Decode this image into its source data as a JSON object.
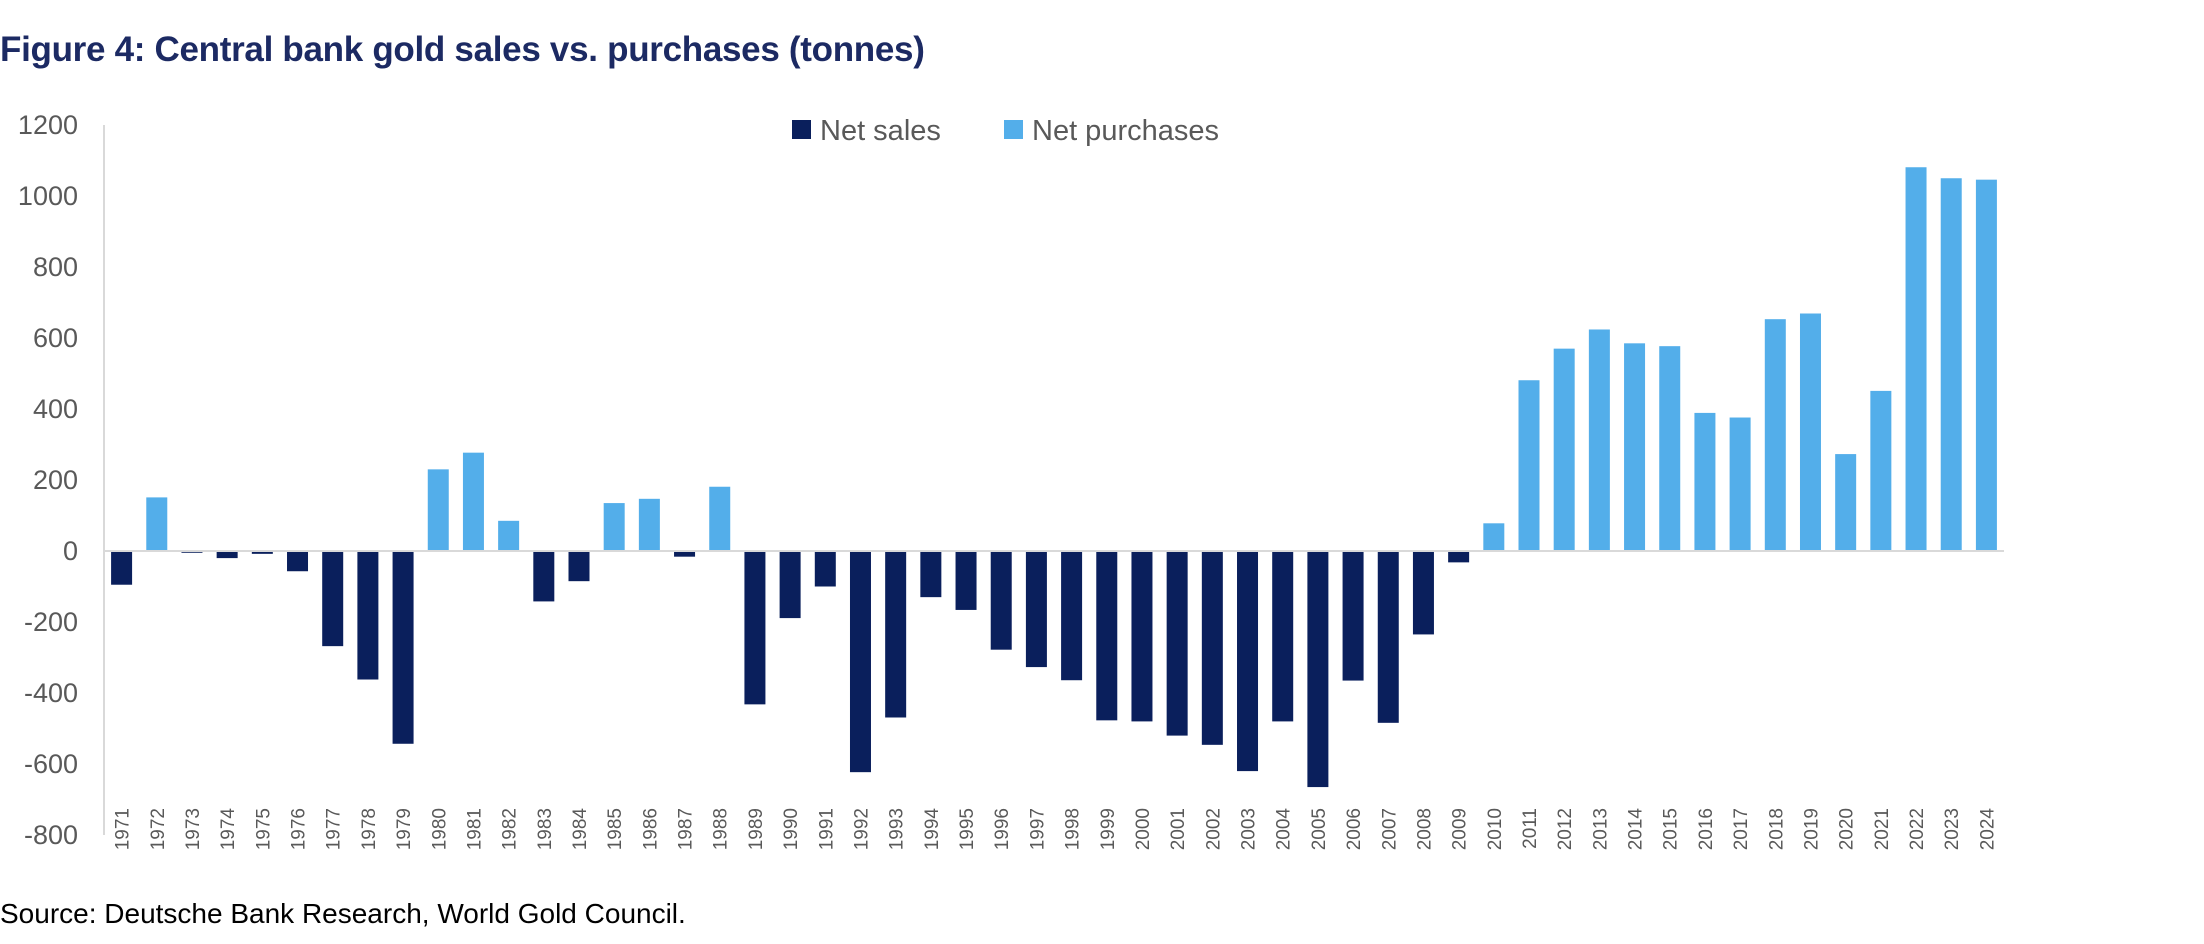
{
  "chart_data": {
    "type": "bar",
    "title": "Figure 4: Central bank gold sales vs. purchases (tonnes)",
    "source": "Source: Deutsche Bank Research, World Gold Council.",
    "xlabel": "",
    "ylabel": "",
    "ylim": [
      -800,
      1200
    ],
    "yticks": [
      1200,
      1000,
      800,
      600,
      400,
      200,
      0,
      -200,
      -400,
      -600,
      -800
    ],
    "grid": false,
    "legend_position": "top-center",
    "categories": [
      "1971",
      "1972",
      "1973",
      "1974",
      "1975",
      "1976",
      "1977",
      "1978",
      "1979",
      "1980",
      "1981",
      "1982",
      "1983",
      "1984",
      "1985",
      "1986",
      "1987",
      "1988",
      "1989",
      "1990",
      "1991",
      "1992",
      "1993",
      "1994",
      "1995",
      "1996",
      "1997",
      "1998",
      "1999",
      "2000",
      "2001",
      "2002",
      "2003",
      "2004",
      "2005",
      "2006",
      "2007",
      "2008",
      "2009",
      "2010",
      "2011",
      "2012",
      "2013",
      "2014",
      "2015",
      "2016",
      "2017",
      "2018",
      "2019",
      "2020",
      "2021",
      "2022",
      "2023",
      "2024"
    ],
    "values": [
      -95,
      151,
      -5,
      -20,
      -8,
      -57,
      -268,
      -362,
      -543,
      230,
      277,
      85,
      -142,
      -85,
      135,
      147,
      -16,
      181,
      -432,
      -189,
      -100,
      -623,
      -469,
      -130,
      -166,
      -278,
      -327,
      -364,
      -477,
      -480,
      -520,
      -546,
      -620,
      -480,
      -665,
      -365,
      -484,
      -235,
      -32,
      78,
      481,
      570,
      624,
      585,
      577,
      389,
      376,
      653,
      669,
      273,
      451,
      1081,
      1050,
      1046
    ],
    "series": [
      {
        "name": "Net sales",
        "color": "#0a1f5c",
        "rule": "negative values"
      },
      {
        "name": "Net purchases",
        "color": "#53aeea",
        "rule": "positive values"
      }
    ]
  }
}
